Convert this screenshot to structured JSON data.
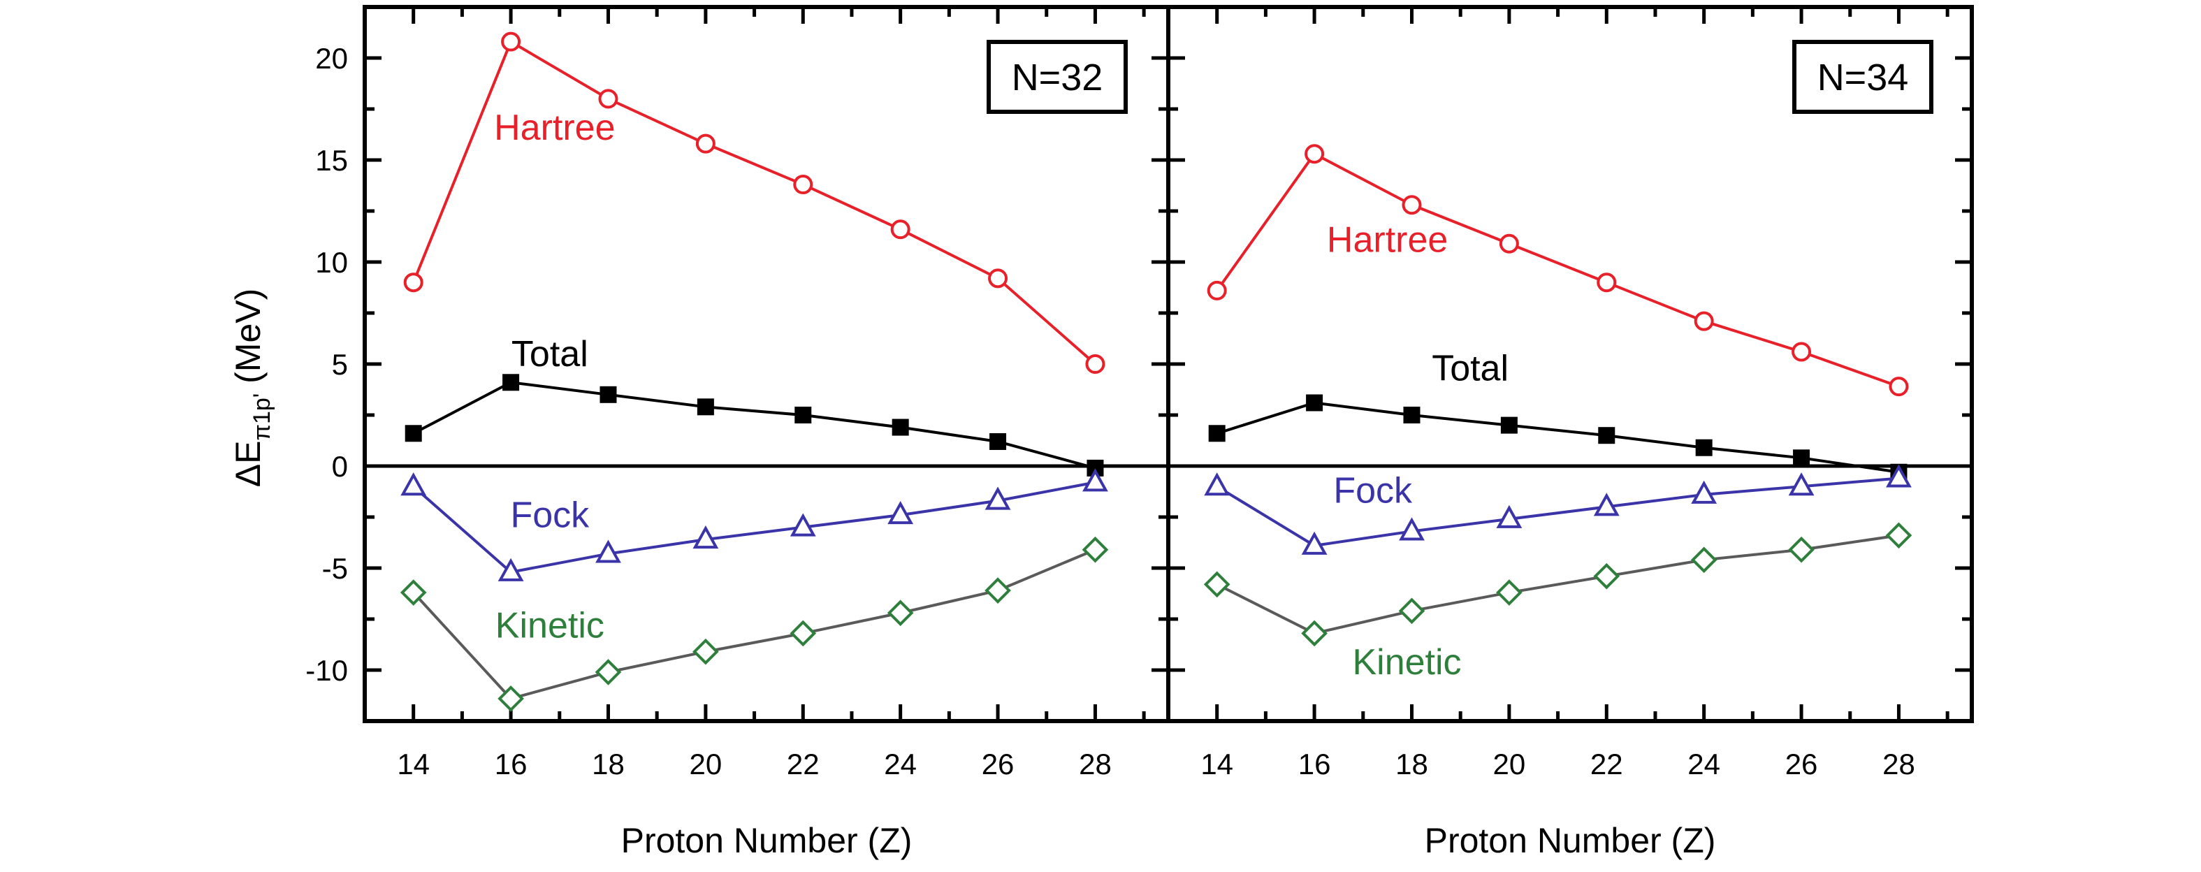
{
  "chart_data": {
    "type": "line",
    "ylabel": "ΔE",
    "ylabel_sub": "π1p'",
    "ylabel_unit": " (MeV)",
    "xlabel": "Proton Number (Z)",
    "xlim": [
      13,
      29.5
    ],
    "ylim": [
      -12.5,
      22.5
    ],
    "x_ticks": [
      14,
      16,
      18,
      20,
      22,
      24,
      26,
      28
    ],
    "y_ticks": [
      -10,
      -5,
      0,
      5,
      10,
      15,
      20
    ],
    "x": [
      14,
      16,
      18,
      20,
      22,
      24,
      26,
      28
    ],
    "colors": {
      "Hartree": "#e8202a",
      "Total": "#000000",
      "Fock": "#3a34a8",
      "Kinetic": "#2f7f3c",
      "Kinetic_line": "#5a5a5a"
    },
    "panels": [
      {
        "label": "N=32",
        "series": [
          {
            "name": "Hartree",
            "marker": "circle",
            "values": [
              9.0,
              20.8,
              18.0,
              15.8,
              13.8,
              11.6,
              9.2,
              5.0
            ]
          },
          {
            "name": "Total",
            "marker": "square",
            "values": [
              1.6,
              4.1,
              3.5,
              2.9,
              2.5,
              1.9,
              1.2,
              -0.1
            ]
          },
          {
            "name": "Fock",
            "marker": "triangle",
            "values": [
              -1.0,
              -5.2,
              -4.3,
              -3.6,
              -3.0,
              -2.4,
              -1.7,
              -0.8
            ]
          },
          {
            "name": "Kinetic",
            "marker": "diamond",
            "values": [
              -6.2,
              -11.4,
              -10.1,
              -9.1,
              -8.2,
              -7.2,
              -6.1,
              -4.1
            ]
          }
        ]
      },
      {
        "label": "N=34",
        "series": [
          {
            "name": "Hartree",
            "marker": "circle",
            "values": [
              8.6,
              15.3,
              12.8,
              10.9,
              9.0,
              7.1,
              5.6,
              3.9
            ]
          },
          {
            "name": "Total",
            "marker": "square",
            "values": [
              1.6,
              3.1,
              2.5,
              2.0,
              1.5,
              0.9,
              0.4,
              -0.3
            ]
          },
          {
            "name": "Fock",
            "marker": "triangle",
            "values": [
              -1.0,
              -3.9,
              -3.2,
              -2.6,
              -2.0,
              -1.4,
              -1.0,
              -0.6
            ]
          },
          {
            "name": "Kinetic",
            "marker": "diamond",
            "values": [
              -5.8,
              -8.2,
              -7.1,
              -6.2,
              -5.4,
              -4.6,
              -4.1,
              -3.4
            ]
          }
        ]
      }
    ]
  }
}
